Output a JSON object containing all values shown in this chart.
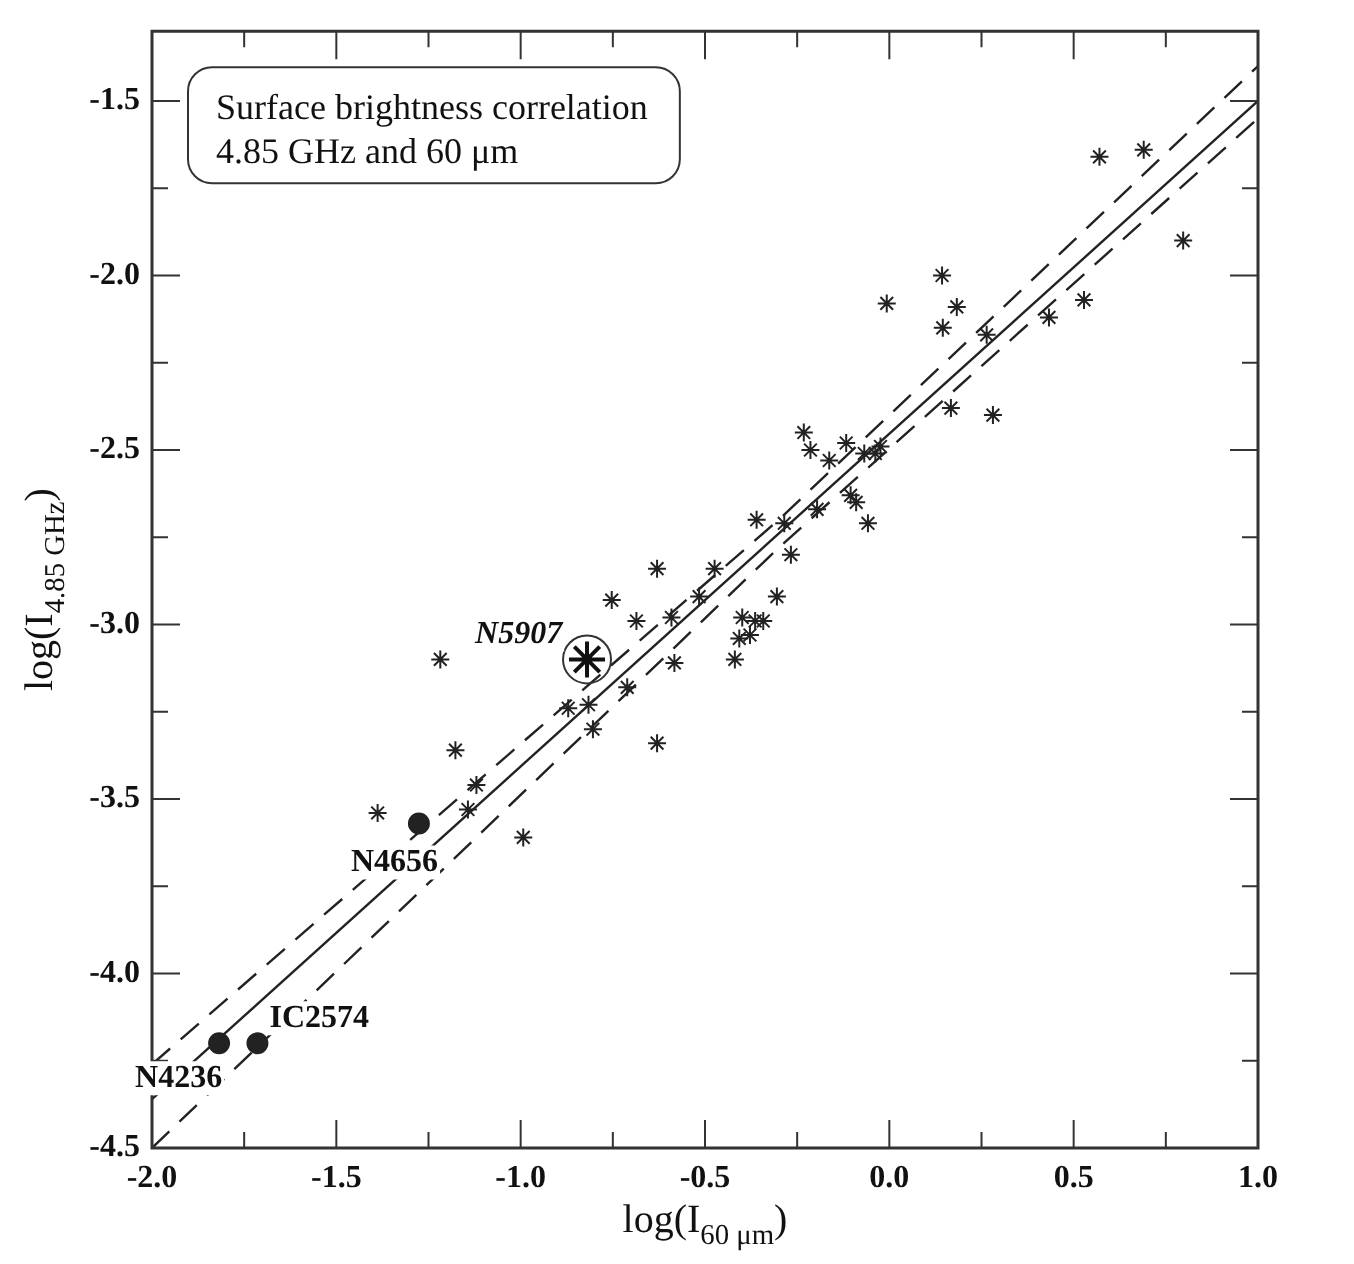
{
  "chart_data": {
    "type": "scatter",
    "title": "Surface brightness correlation\n4.85 GHz and 60 μm",
    "xlabel": "log(I$_{60 μm}$)",
    "ylabel": "log(I$_{4.85 GHz}$)",
    "xlim": [
      -2.0,
      1.0
    ],
    "ylim": [
      -4.5,
      -1.3
    ],
    "xticks": [
      {
        "value": -2.0,
        "label": "-2.0"
      },
      {
        "value": -1.75,
        "label": null
      },
      {
        "value": -1.5,
        "label": "-1.5"
      },
      {
        "value": -1.25,
        "label": null
      },
      {
        "value": -1.0,
        "label": "-1.0"
      },
      {
        "value": -0.75,
        "label": null
      },
      {
        "value": -0.5,
        "label": "-0.5"
      },
      {
        "value": -0.25,
        "label": null
      },
      {
        "value": 0.0,
        "label": "0.0"
      },
      {
        "value": 0.25,
        "label": null
      },
      {
        "value": 0.5,
        "label": "0.5"
      },
      {
        "value": 0.75,
        "label": null
      },
      {
        "value": 1.0,
        "label": "1.0"
      }
    ],
    "yticks": [
      {
        "value": -4.5,
        "label": "-4.5"
      },
      {
        "value": -4.25,
        "label": null
      },
      {
        "value": -4.0,
        "label": "-4.0"
      },
      {
        "value": -3.75,
        "label": null
      },
      {
        "value": -3.5,
        "label": "-3.5"
      },
      {
        "value": -3.25,
        "label": null
      },
      {
        "value": -3.0,
        "label": "-3.0"
      },
      {
        "value": -2.75,
        "label": null
      },
      {
        "value": -2.5,
        "label": "-2.5"
      },
      {
        "value": -2.25,
        "label": null
      },
      {
        "value": -2.0,
        "label": "-2.0"
      },
      {
        "value": -1.75,
        "label": null
      },
      {
        "value": -1.5,
        "label": "-1.5"
      }
    ],
    "grid": false,
    "legend": false,
    "series": [
      {
        "marker": "cross",
        "color": "#222222",
        "x": [
          0.57,
          0.69,
          0.797,
          0.143,
          -0.007,
          0.183,
          0.145,
          0.264,
          0.433,
          0.528,
          0.167,
          0.281,
          -0.232,
          -0.214,
          -0.163,
          -0.117,
          -0.068,
          -0.038,
          -0.024,
          -0.105,
          -0.09,
          -0.058,
          -0.196,
          -0.36,
          -0.285,
          -0.267,
          -0.305,
          -0.474,
          -0.516,
          -0.63,
          -0.591,
          -0.686,
          -0.753,
          -0.399,
          -0.364,
          -0.342,
          -0.407,
          -0.378,
          -0.419,
          -0.583,
          -0.711,
          -0.871,
          -0.816,
          -0.804,
          -0.63,
          -1.218,
          -1.177,
          -1.12,
          -1.143,
          -1.388,
          -0.993
        ],
        "values": [
          -1.66,
          -1.64,
          -1.9,
          -2.0,
          -2.08,
          -2.09,
          -2.15,
          -2.17,
          -2.12,
          -2.07,
          -2.38,
          -2.4,
          -2.45,
          -2.5,
          -2.53,
          -2.48,
          -2.51,
          -2.51,
          -2.49,
          -2.63,
          -2.65,
          -2.71,
          -2.67,
          -2.7,
          -2.71,
          -2.8,
          -2.92,
          -2.84,
          -2.92,
          -2.84,
          -2.98,
          -2.99,
          -2.93,
          -2.98,
          -2.99,
          -2.99,
          -3.04,
          -3.03,
          -3.1,
          -3.11,
          -3.18,
          -3.24,
          -3.23,
          -3.3,
          -3.34,
          -3.1,
          -3.36,
          -3.46,
          -3.53,
          -3.54,
          -3.61
        ]
      },
      {
        "marker": "cross",
        "color": "#111111",
        "x": [
          -0.82
        ],
        "values": [
          -3.1
        ]
      },
      {
        "marker": "circle",
        "color": "#222222",
        "x": [
          -1.276,
          -1.714,
          -1.818
        ],
        "values": [
          -3.57,
          -4.2,
          -4.2
        ]
      },
      {
        "type": "line",
        "marker": "none",
        "line_style": "solid",
        "color": "#222222",
        "x": [
          -2.0,
          1.0
        ],
        "values": [
          -4.36,
          -1.5
        ]
      },
      {
        "type": "line",
        "marker": "none",
        "line_style": "dashed",
        "color": "#222222",
        "x": [
          -2.0,
          -0.3,
          1.0
        ],
        "values": [
          -4.26,
          -2.7,
          -1.4
        ]
      },
      {
        "type": "line",
        "marker": "none",
        "line_style": "dashed",
        "color": "#222222",
        "x": [
          -2.0,
          -0.3,
          1.0
        ],
        "values": [
          -4.5,
          -2.78,
          -1.55
        ]
      }
    ],
    "annotations": [
      {
        "text": "N5907",
        "x": -0.82,
        "y": -3.1
      },
      {
        "text": "N4656",
        "x": -1.276,
        "y": -3.57
      },
      {
        "text": "IC2574",
        "x": -1.714,
        "y": -4.2
      },
      {
        "text": "N4236",
        "x": -1.818,
        "y": -4.2
      }
    ]
  }
}
